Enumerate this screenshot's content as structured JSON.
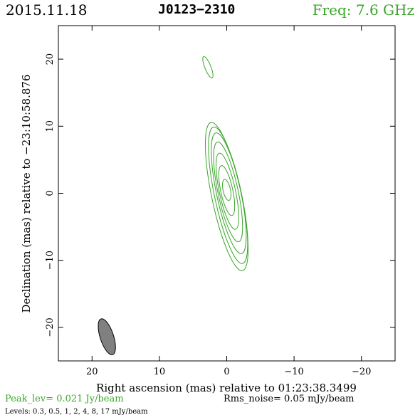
{
  "header": {
    "date": "2015.11.18",
    "source": "J0123−2310",
    "freq": "Freq: 7.6 GHz"
  },
  "colors": {
    "contour": "#3aa52a",
    "freq_text": "#3aa52a",
    "peak_text": "#3aa52a",
    "beam_fill": "#808080",
    "frame": "#000000"
  },
  "footer": {
    "peak": "Peak_lev=  0.021 Jy/beam",
    "rms": "Rms_noise= 0.05 mJy/beam",
    "levels": "Levels: 0.3, 0.5,    1,    2,    4,    8,   17 mJy/beam"
  },
  "chart_data": {
    "type": "contour",
    "xlabel": "Right ascension (mas) relative to 01:23:38.3499",
    "ylabel": "Declination (mas) relative to −23:10:58.876",
    "xlim": [
      25,
      -25
    ],
    "ylim": [
      -25,
      25
    ],
    "xticks": [
      20,
      10,
      0,
      -10,
      -20
    ],
    "yticks": [
      20,
      10,
      0,
      -10,
      -20
    ],
    "xticklabels": [
      "20",
      "10",
      "0",
      "−10",
      "−20"
    ],
    "yticklabels": [
      "20",
      "10",
      "0",
      "−10",
      "−20"
    ],
    "levels_mJy": [
      0.3,
      0.5,
      1,
      2,
      4,
      8,
      17
    ],
    "contours": [
      {
        "cx": 0.0,
        "cy": -0.5,
        "a": 2.2,
        "b": 11.3,
        "pa": 12
      },
      {
        "cx": -0.2,
        "cy": -0.3,
        "a": 2.0,
        "b": 10.4,
        "pa": 12
      },
      {
        "cx": -0.3,
        "cy": 0.0,
        "a": 1.8,
        "b": 9.2,
        "pa": 12
      },
      {
        "cx": -0.2,
        "cy": 0.2,
        "a": 1.5,
        "b": 7.6,
        "pa": 12
      },
      {
        "cx": -0.1,
        "cy": 0.3,
        "a": 1.2,
        "b": 5.8,
        "pa": 12
      },
      {
        "cx": 0.0,
        "cy": 0.4,
        "a": 0.9,
        "b": 3.8,
        "pa": 12
      },
      {
        "cx": 0.0,
        "cy": 0.5,
        "a": 0.55,
        "b": 1.6,
        "pa": 12
      },
      {
        "cx": 2.8,
        "cy": 18.8,
        "a": 0.45,
        "b": 1.7,
        "pa": 22
      }
    ],
    "beam": {
      "cx": 17.8,
      "cy": -21.4,
      "major": 5.6,
      "minor": 2.0,
      "pa": 18
    }
  }
}
